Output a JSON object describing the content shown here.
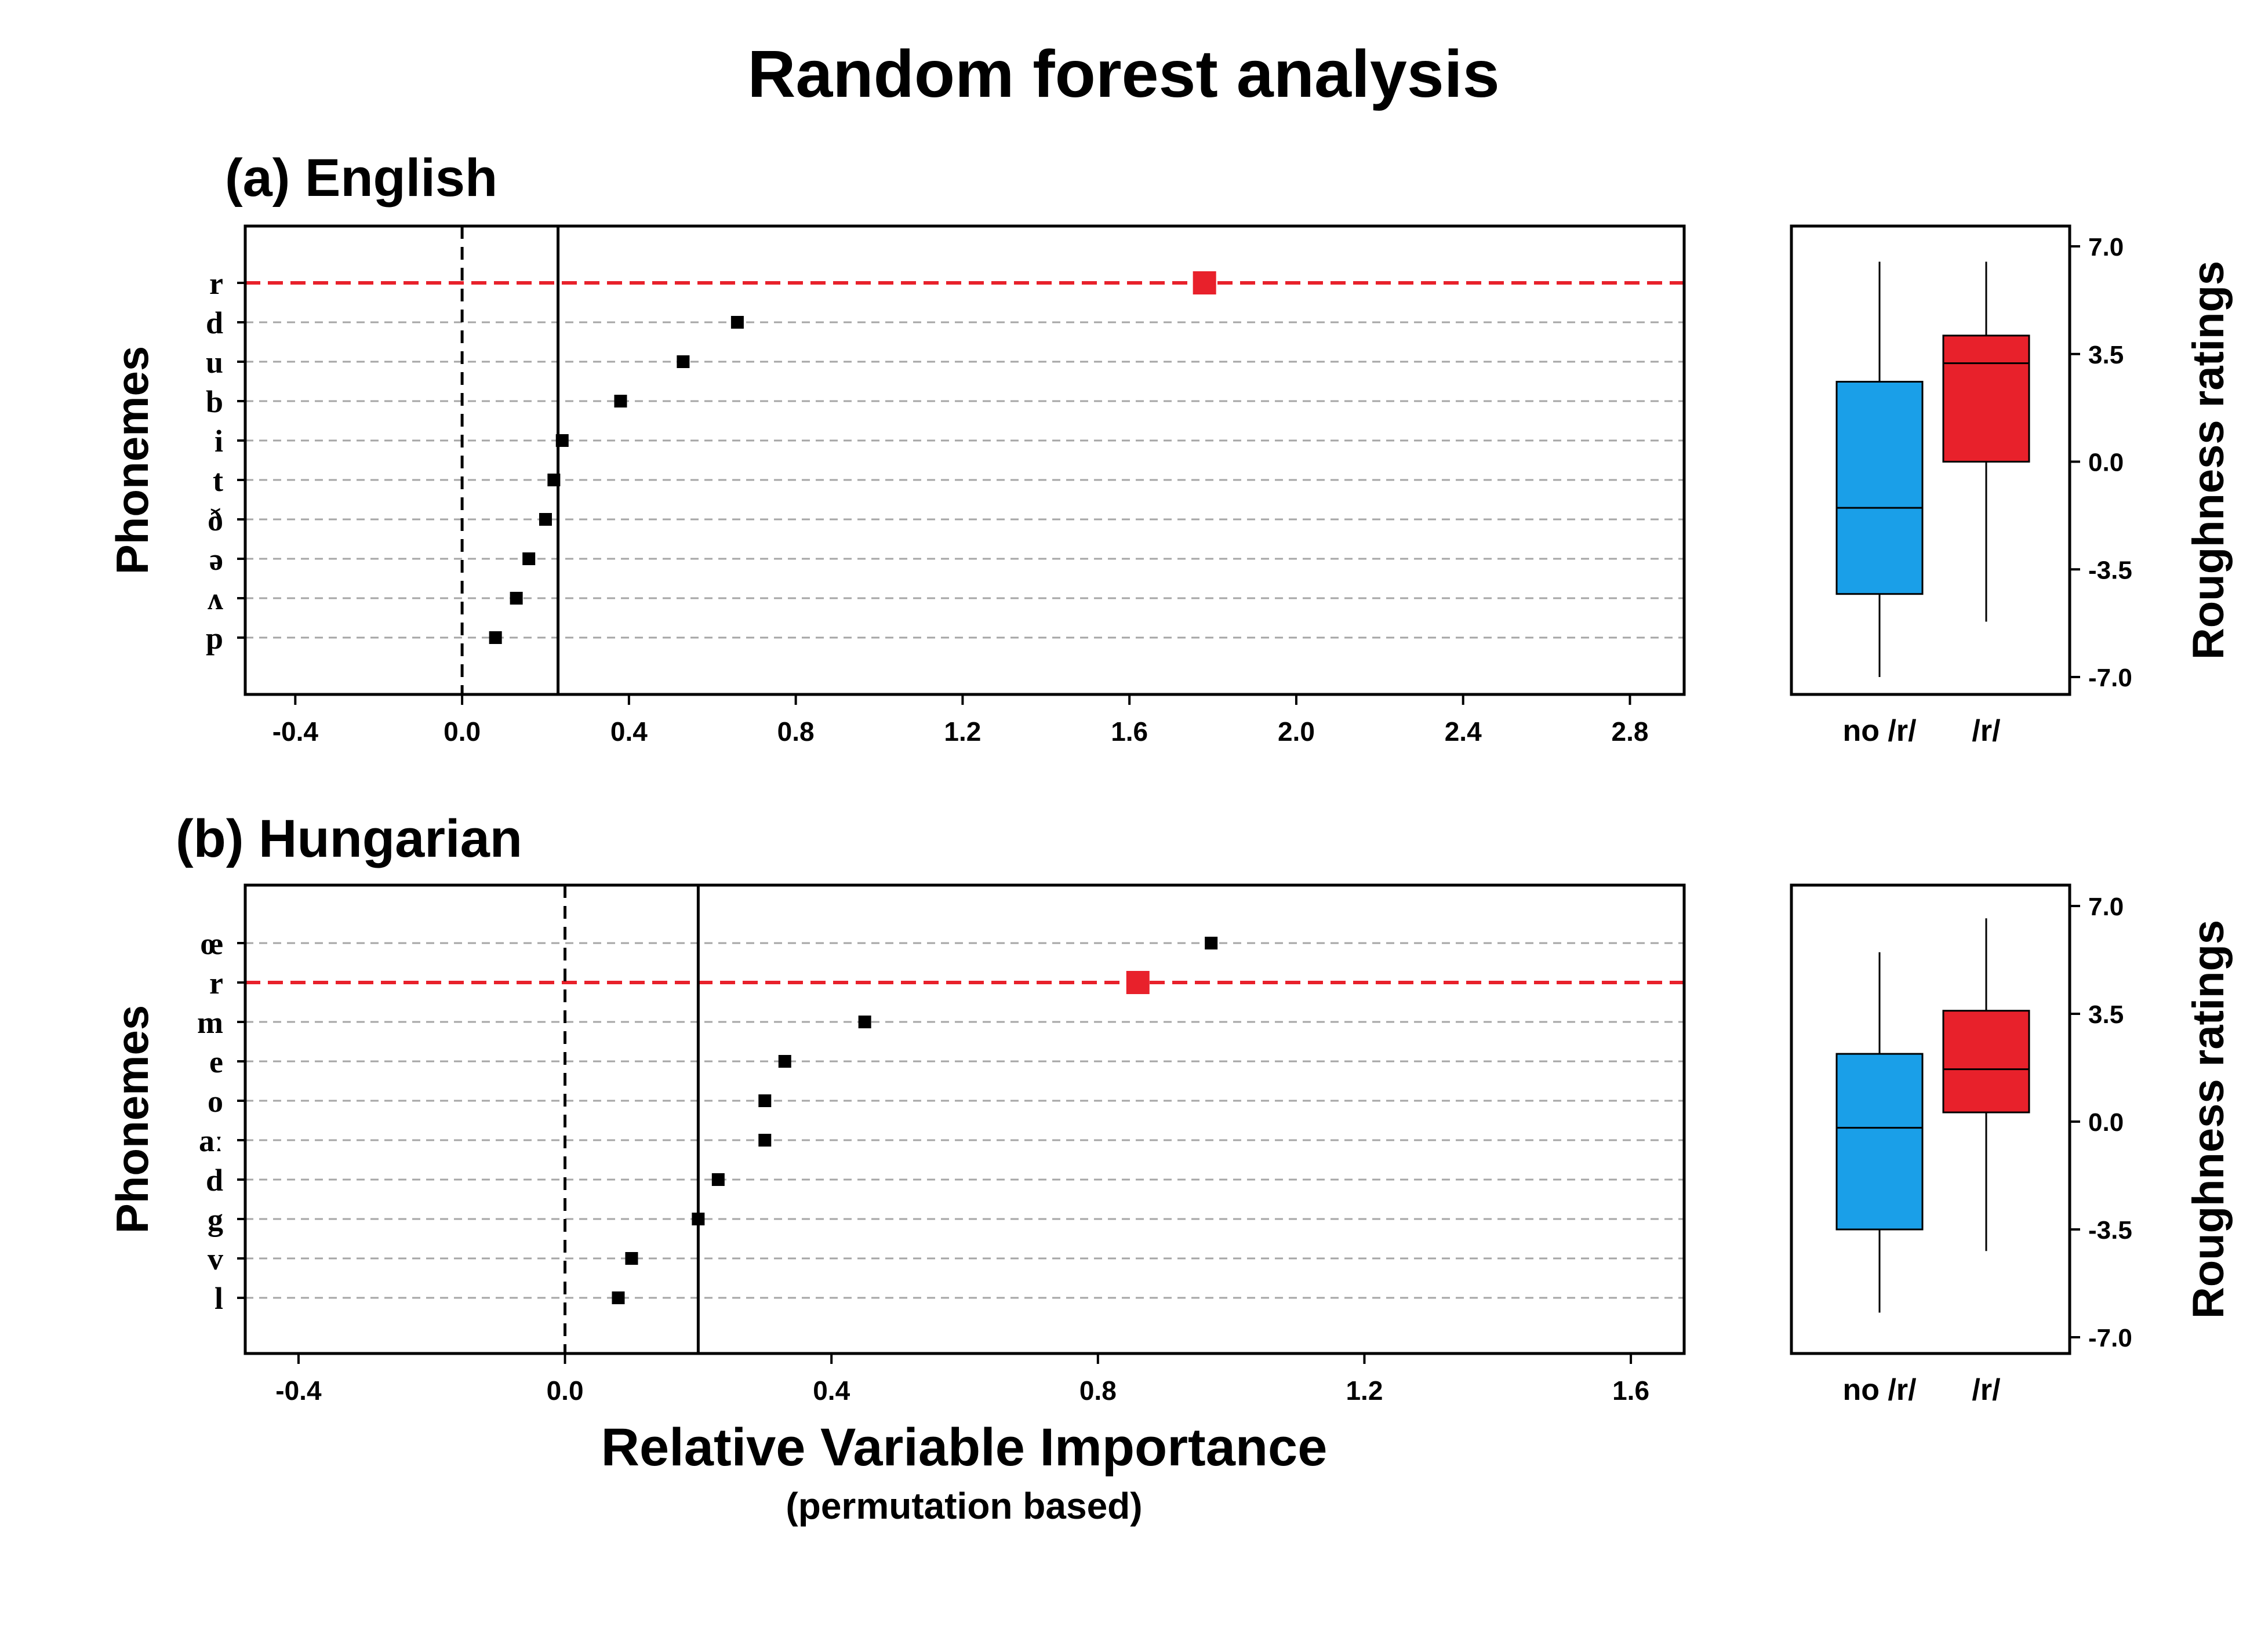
{
  "title": "Random forest analysis",
  "x_axis": {
    "label": "Relative Variable Importance",
    "sublabel": "(permutation based)"
  },
  "box_axis": {
    "ylabel": "Roughness ratings",
    "ticks": [
      "7.0",
      "3.5",
      "0.0",
      "-3.5",
      "-7.0"
    ],
    "categories": [
      "no /r/",
      "/r/"
    ]
  },
  "colors": {
    "highlight": "#e8212b",
    "no_r_box": "#1a9fe8",
    "r_box": "#e8212b",
    "points": "#000000"
  },
  "chart_data": [
    {
      "type": "scatter",
      "panel": "(a) English",
      "title": "(a) English",
      "ylabel": "Phonemes",
      "xlabel": "Relative Variable Importance",
      "xlim": [
        -0.52,
        2.93
      ],
      "xticks": [
        "-0.4",
        "0.0",
        "0.4",
        "0.8",
        "1.2",
        "1.6",
        "2.0",
        "2.4",
        "2.8"
      ],
      "categories": [
        "r",
        "d",
        "u",
        "b",
        "i",
        "t",
        "ð",
        "ə",
        "ʌ",
        "p"
      ],
      "values": [
        1.78,
        0.66,
        0.53,
        0.38,
        0.24,
        0.22,
        0.2,
        0.16,
        0.13,
        0.08
      ],
      "highlight": "r",
      "dashed_reference": 0.0,
      "solid_reference": 0.23,
      "grid": true
    },
    {
      "type": "box",
      "panel": "(a) English",
      "ylabel": "Roughness ratings",
      "ylim": [
        -7.0,
        7.0
      ],
      "categories": [
        "no /r/",
        "/r/"
      ],
      "boxes": [
        {
          "category": "no /r/",
          "whisker_low": -7.0,
          "q1": -4.3,
          "median": -1.5,
          "q3": 2.6,
          "whisker_high": 6.5
        },
        {
          "category": "/r/",
          "whisker_low": -5.2,
          "q1": 0.0,
          "median": 3.2,
          "q3": 4.1,
          "whisker_high": 6.5
        }
      ]
    },
    {
      "type": "scatter",
      "panel": "(b) Hungarian",
      "title": "(b) Hungarian",
      "ylabel": "Phonemes",
      "xlabel": "Relative Variable Importance",
      "xlim": [
        -0.48,
        1.68
      ],
      "xticks": [
        "-0.4",
        "0.0",
        "0.4",
        "0.8",
        "1.2",
        "1.6"
      ],
      "categories": [
        "œ",
        "r",
        "m",
        "e",
        "o",
        "aː",
        "d",
        "g",
        "v",
        "l"
      ],
      "values": [
        0.97,
        0.86,
        0.45,
        0.33,
        0.3,
        0.3,
        0.23,
        0.2,
        0.1,
        0.08
      ],
      "highlight": "r",
      "dashed_reference": 0.0,
      "solid_reference": 0.2,
      "grid": true
    },
    {
      "type": "box",
      "panel": "(b) Hungarian",
      "ylabel": "Roughness ratings",
      "ylim": [
        -7.0,
        7.0
      ],
      "categories": [
        "no /r/",
        "/r/"
      ],
      "boxes": [
        {
          "category": "no /r/",
          "whisker_low": -6.2,
          "q1": -3.5,
          "median": -0.2,
          "q3": 2.2,
          "whisker_high": 5.5
        },
        {
          "category": "/r/",
          "whisker_low": -4.2,
          "q1": 0.3,
          "median": 1.7,
          "q3": 3.6,
          "whisker_high": 6.6
        }
      ]
    }
  ]
}
